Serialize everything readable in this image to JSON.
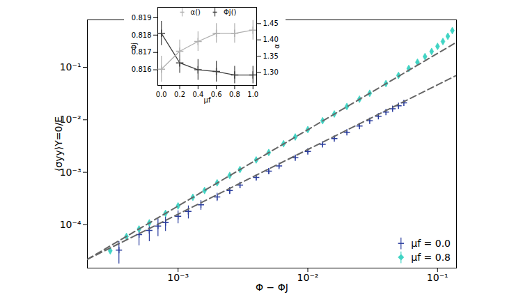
{
  "chart_data": [
    {
      "type": "scatter",
      "x_label": "Φ − ΦJ",
      "y_label": "⟨σyy⟩Y=0/E",
      "log": true,
      "xlim": [
        0.0002,
        0.14
      ],
      "ylim": [
        1.5e-05,
        0.8
      ],
      "xticks": [
        {
          "value": 0.001,
          "label": "10⁻³"
        },
        {
          "value": 0.01,
          "label": "10⁻²"
        },
        {
          "value": 0.1,
          "label": "10⁻¹"
        }
      ],
      "yticks": [
        {
          "value": 0.0001,
          "label": "10⁻⁴"
        },
        {
          "value": 0.001,
          "label": "10⁻³"
        },
        {
          "value": 0.01,
          "label": "10⁻²"
        },
        {
          "value": 0.1,
          "label": "10⁻¹"
        }
      ],
      "legend": "lower right",
      "series": [
        {
          "name": "μf = 0.0",
          "color": "#2a3d9e",
          "marker": "plus",
          "x": [
            0.00035,
            0.0005,
            0.0006,
            0.0007,
            0.0008,
            0.001,
            0.0012,
            0.0015,
            0.002,
            0.0025,
            0.003,
            0.004,
            0.005,
            0.006,
            0.008,
            0.01,
            0.013,
            0.016,
            0.02,
            0.025,
            0.03,
            0.035,
            0.04,
            0.045,
            0.05,
            0.055
          ],
          "values": [
            3.3e-05,
            6.5e-05,
            7.8e-05,
            9.5e-05,
            0.00011,
            0.000145,
            0.00018,
            0.00024,
            0.00034,
            0.00045,
            0.00057,
            0.0008,
            0.00105,
            0.00132,
            0.0019,
            0.0025,
            0.0034,
            0.0044,
            0.0058,
            0.0076,
            0.0096,
            0.0117,
            0.014,
            0.0162,
            0.0185,
            0.021
          ],
          "errors": [
            1.5e-05,
            2.5e-05,
            3e-05,
            3.5e-05,
            3.5e-05,
            4e-05,
            5e-05,
            5e-05,
            6e-05,
            7e-05,
            8e-05,
            0.0001,
            0.00012,
            0.00013,
            0.00016,
            0.0002,
            0.00025,
            0.0003,
            0.00035,
            0.0004,
            0.0005,
            0.0005,
            0.0006,
            0.0006,
            0.0007,
            0.0008
          ]
        },
        {
          "name": "μf = 0.8",
          "color": "#40d4c4",
          "marker": "diamond",
          "x": [
            0.0003,
            0.0004,
            0.0005,
            0.0006,
            0.0008,
            0.001,
            0.0013,
            0.0016,
            0.002,
            0.0025,
            0.003,
            0.004,
            0.005,
            0.0065,
            0.008,
            0.01,
            0.013,
            0.016,
            0.02,
            0.025,
            0.03,
            0.04,
            0.05,
            0.06,
            0.07,
            0.08,
            0.09,
            0.1,
            0.11,
            0.12,
            0.13
          ],
          "values": [
            3.2e-05,
            6e-05,
            8.3e-05,
            0.000109,
            0.000165,
            0.000229,
            0.000335,
            0.00045,
            0.00063,
            0.00087,
            0.00113,
            0.00172,
            0.00238,
            0.0035,
            0.0047,
            0.0065,
            0.0096,
            0.0129,
            0.0179,
            0.0247,
            0.032,
            0.049,
            0.07,
            0.095,
            0.125,
            0.16,
            0.2,
            0.25,
            0.31,
            0.39,
            0.5
          ]
        },
        {
          "type": "line",
          "line_style": "dashed",
          "color": "#666666",
          "x": [
            0.0002,
            0.14
          ],
          "values": [
            2.2e-05,
            0.3
          ]
        },
        {
          "type": "line",
          "line_style": "dashed",
          "color": "#666666",
          "x": [
            0.0002,
            0.14
          ],
          "values": [
            2.2e-05,
            0.07
          ]
        }
      ]
    },
    {
      "type": "line",
      "x_label": "μf",
      "y_label": "Φj",
      "y2_label": "α",
      "xlim": [
        -0.04,
        1.04
      ],
      "ylim": [
        0.8151,
        0.8196
      ],
      "y2lim": [
        1.26,
        1.5
      ],
      "xticks": [
        {
          "value": 0,
          "label": "0.0"
        },
        0.2,
        0.4,
        0.6,
        0.8,
        {
          "value": 1,
          "label": "1.0"
        }
      ],
      "yticks": [
        0.816,
        0.817,
        0.818,
        0.819
      ],
      "y2ticks": [
        {
          "value": 1.3,
          "label": "1.30"
        },
        1.35,
        {
          "value": 1.4,
          "label": "1.40"
        },
        1.45
      ],
      "legend": "upper center",
      "series": [
        {
          "name": "α()",
          "axis": "y2",
          "color": "#b0b0b0",
          "marker": "plus",
          "x": [
            0,
            0.2,
            0.4,
            0.6,
            0.8,
            1
          ],
          "values": [
            1.31,
            1.365,
            1.395,
            1.42,
            1.42,
            1.43
          ],
          "errors": [
            0.04,
            0.035,
            0.03,
            0.03,
            0.03,
            0.03
          ]
        },
        {
          "name": "Φj()",
          "color": "#404040",
          "marker": "plus",
          "x": [
            0,
            0.2,
            0.4,
            0.6,
            0.8,
            1
          ],
          "values": [
            0.8181,
            0.8164,
            0.816,
            0.8159,
            0.8157,
            0.8157
          ],
          "errors": [
            0.0007,
            0.0006,
            0.0006,
            0.0006,
            0.0005,
            0.0005
          ]
        }
      ]
    }
  ]
}
